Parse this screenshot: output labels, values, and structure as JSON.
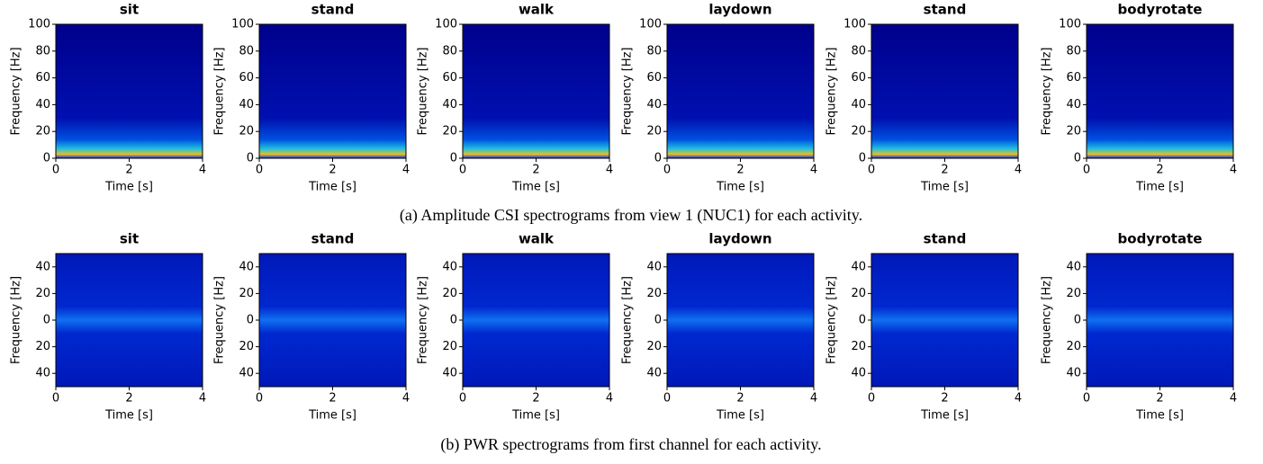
{
  "chart_data": [
    {
      "type": "spectrogram",
      "title": "sit",
      "xlabel": "Time [s]",
      "ylabel": "Frequency [Hz]",
      "xlim": [
        0,
        4
      ],
      "xticks": [
        0,
        2,
        4
      ],
      "ylim": [
        0,
        100
      ],
      "yticks": [
        0,
        20,
        40,
        60,
        80,
        100
      ]
    },
    {
      "type": "spectrogram",
      "title": "stand",
      "xlabel": "Time [s]",
      "ylabel": "Frequency [Hz]",
      "xlim": [
        0,
        4
      ],
      "xticks": [
        0,
        2,
        4
      ],
      "ylim": [
        0,
        100
      ],
      "yticks": [
        0,
        20,
        40,
        60,
        80,
        100
      ]
    },
    {
      "type": "spectrogram",
      "title": "walk",
      "xlabel": "Time [s]",
      "ylabel": "Frequency [Hz]",
      "xlim": [
        0,
        4
      ],
      "xticks": [
        0,
        2,
        4
      ],
      "ylim": [
        0,
        100
      ],
      "yticks": [
        0,
        20,
        40,
        60,
        80,
        100
      ]
    },
    {
      "type": "spectrogram",
      "title": "laydown",
      "xlabel": "Time [s]",
      "ylabel": "Frequency [Hz]",
      "xlim": [
        0,
        4
      ],
      "xticks": [
        0,
        2,
        4
      ],
      "ylim": [
        0,
        100
      ],
      "yticks": [
        0,
        20,
        40,
        60,
        80,
        100
      ]
    },
    {
      "type": "spectrogram",
      "title": "stand",
      "xlabel": "Time [s]",
      "ylabel": "Frequency [Hz]",
      "xlim": [
        0,
        4
      ],
      "xticks": [
        0,
        2,
        4
      ],
      "ylim": [
        0,
        100
      ],
      "yticks": [
        0,
        20,
        40,
        60,
        80,
        100
      ]
    },
    {
      "type": "spectrogram",
      "title": "bodyrotate",
      "xlabel": "Time [s]",
      "ylabel": "Frequency [Hz]",
      "xlim": [
        0,
        4
      ],
      "xticks": [
        0,
        2,
        4
      ],
      "ylim": [
        0,
        100
      ],
      "yticks": [
        0,
        20,
        40,
        60,
        80,
        100
      ]
    },
    {
      "type": "spectrogram",
      "title": "sit",
      "xlabel": "Time [s]",
      "ylabel": "Frequency [Hz]",
      "xlim": [
        0,
        4
      ],
      "xticks": [
        0,
        2,
        4
      ],
      "ylim": [
        -50,
        50
      ],
      "yticks": [
        {
          "value": -40,
          "label": "40"
        },
        {
          "value": -20,
          "label": "20"
        },
        0,
        20,
        40
      ]
    },
    {
      "type": "spectrogram",
      "title": "stand",
      "xlabel": "Time [s]",
      "ylabel": "Frequency [Hz]",
      "xlim": [
        0,
        4
      ],
      "xticks": [
        0,
        2,
        4
      ],
      "ylim": [
        -50,
        50
      ],
      "yticks": [
        {
          "value": -40,
          "label": "40"
        },
        {
          "value": -20,
          "label": "20"
        },
        0,
        20,
        40
      ]
    },
    {
      "type": "spectrogram",
      "title": "walk",
      "xlabel": "Time [s]",
      "ylabel": "Frequency [Hz]",
      "xlim": [
        0,
        4
      ],
      "xticks": [
        0,
        2,
        4
      ],
      "ylim": [
        -50,
        50
      ],
      "yticks": [
        {
          "value": -40,
          "label": "40"
        },
        {
          "value": -20,
          "label": "20"
        },
        0,
        20,
        40
      ]
    },
    {
      "type": "spectrogram",
      "title": "laydown",
      "xlabel": "Time [s]",
      "ylabel": "Frequency [Hz]",
      "xlim": [
        0,
        4
      ],
      "xticks": [
        0,
        2,
        4
      ],
      "ylim": [
        -50,
        50
      ],
      "yticks": [
        {
          "value": -40,
          "label": "40"
        },
        {
          "value": -20,
          "label": "20"
        },
        0,
        20,
        40
      ]
    },
    {
      "type": "spectrogram",
      "title": "stand",
      "xlabel": "Time [s]",
      "ylabel": "Frequency [Hz]",
      "xlim": [
        0,
        4
      ],
      "xticks": [
        0,
        2,
        4
      ],
      "ylim": [
        -50,
        50
      ],
      "yticks": [
        {
          "value": -40,
          "label": "40"
        },
        {
          "value": -20,
          "label": "20"
        },
        0,
        20,
        40
      ]
    },
    {
      "type": "spectrogram",
      "title": "bodyrotate",
      "xlabel": "Time [s]",
      "ylabel": "Frequency [Hz]",
      "xlim": [
        0,
        4
      ],
      "xticks": [
        0,
        2,
        4
      ],
      "ylim": [
        -50,
        50
      ],
      "yticks": [
        {
          "value": -40,
          "label": "40"
        },
        {
          "value": -20,
          "label": "20"
        },
        0,
        20,
        40
      ]
    }
  ],
  "captions": [
    "(a) Amplitude CSI spectrograms from view 1 (NUC1) for each activity.",
    "(b) PWR spectrograms from first channel for each activity."
  ]
}
